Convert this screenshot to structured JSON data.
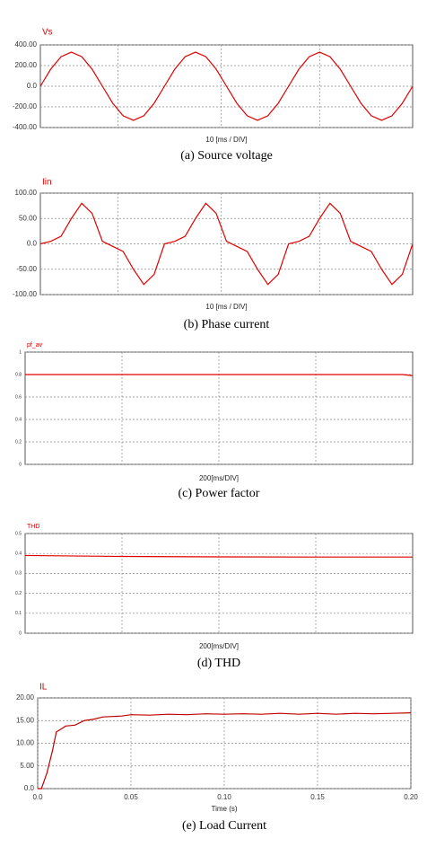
{
  "chart_data": [
    {
      "type": "line",
      "caption": "(a)  Source voltage",
      "xlabel": "10 [ms / DIV]",
      "x": [
        0,
        1,
        2,
        3,
        4,
        5,
        6,
        7,
        8,
        9,
        10,
        11,
        12,
        13,
        14,
        15,
        16,
        17,
        18,
        19,
        20,
        21,
        22,
        23,
        24,
        25,
        26,
        27,
        28,
        29,
        30,
        31,
        32,
        33,
        34,
        35,
        36
      ],
      "series": [
        {
          "name": "Vs",
          "color": "#e00000",
          "values": [
            0,
            165,
            286,
            330,
            286,
            165,
            0,
            -165,
            -286,
            -330,
            -286,
            -165,
            0,
            165,
            286,
            330,
            286,
            165,
            0,
            -165,
            -286,
            -330,
            -286,
            -165,
            0,
            165,
            286,
            330,
            286,
            165,
            0,
            -165,
            -286,
            -330,
            -286,
            -165,
            0
          ]
        }
      ],
      "xlim": [
        0,
        36
      ],
      "xgrid": [
        7.5,
        17.5,
        27
      ],
      "ylim": [
        -400,
        400
      ],
      "yticks": [
        {
          "value": -400,
          "label": "-400.00"
        },
        {
          "value": -200,
          "label": "-200.00"
        },
        {
          "value": 0,
          "label": "0.0"
        },
        {
          "value": 200,
          "label": "200.00"
        },
        {
          "value": 400,
          "label": "400.00"
        }
      ]
    },
    {
      "type": "line",
      "caption": "(b)  Phase  current",
      "xlabel": "10 [ms / DIV]",
      "x": [
        0,
        1,
        2,
        3,
        4,
        5,
        6,
        7,
        8,
        9,
        10,
        11,
        12,
        13,
        14,
        15,
        16,
        17,
        18,
        19,
        20,
        21,
        22,
        23,
        24,
        25,
        26,
        27,
        28,
        29,
        30,
        31,
        32,
        33,
        34,
        35,
        36
      ],
      "series": [
        {
          "name": "Iin",
          "color": "#e00000",
          "values": [
            0,
            5,
            15,
            50,
            80,
            60,
            5,
            -5,
            -15,
            -50,
            -80,
            -60,
            0,
            5,
            15,
            50,
            80,
            60,
            5,
            -5,
            -15,
            -50,
            -80,
            -60,
            0,
            5,
            15,
            50,
            80,
            60,
            5,
            -5,
            -15,
            -50,
            -80,
            -60,
            0
          ]
        }
      ],
      "xlim": [
        0,
        36
      ],
      "xgrid": [
        7.5,
        17.5,
        27
      ],
      "ylim": [
        -100,
        100
      ],
      "yticks": [
        {
          "value": -100,
          "label": "-100.00"
        },
        {
          "value": -50,
          "label": "-50.00"
        },
        {
          "value": 0,
          "label": "0.0"
        },
        {
          "value": 50,
          "label": "50.00"
        },
        {
          "value": 100,
          "label": "100.00"
        }
      ]
    },
    {
      "type": "line",
      "caption": "(c)  Power  factor",
      "xlabel": "200[ms/DIV]",
      "x": [
        0,
        200,
        400,
        600,
        780,
        800
      ],
      "series": [
        {
          "name": "pf_av",
          "color": "#e00000",
          "values": [
            0.8,
            0.8,
            0.8,
            0.8,
            0.8,
            0.79
          ]
        }
      ],
      "xlim": [
        0,
        800
      ],
      "xgrid": [
        200,
        400,
        600
      ],
      "ylim": [
        0,
        1
      ],
      "yticks": [
        0,
        0.2,
        0.4,
        0.6,
        0.8,
        1
      ]
    },
    {
      "type": "line",
      "caption": "(d)  THD",
      "xlabel": "200[ms/DIV]",
      "x": [
        0,
        200,
        400,
        600,
        800
      ],
      "series": [
        {
          "name": "THD",
          "color": "#e00000",
          "values": [
            0.39,
            0.385,
            0.383,
            0.382,
            0.382
          ]
        }
      ],
      "xlim": [
        0,
        800
      ],
      "xgrid": [
        200,
        400,
        600
      ],
      "ylim": [
        0,
        0.5
      ],
      "yticks": [
        0,
        0.1,
        0.2,
        0.3,
        0.4,
        0.5
      ]
    },
    {
      "type": "line",
      "caption": "(e)  Load  Current",
      "xlabel": "Time (s)",
      "x": [
        0,
        0.002,
        0.005,
        0.008,
        0.01,
        0.012,
        0.015,
        0.02,
        0.025,
        0.03,
        0.035,
        0.04,
        0.045,
        0.05,
        0.06,
        0.07,
        0.08,
        0.09,
        0.1,
        0.11,
        0.12,
        0.13,
        0.14,
        0.15,
        0.16,
        0.17,
        0.18,
        0.19,
        0.2
      ],
      "series": [
        {
          "name": "IL",
          "color": "#c00000",
          "values": [
            0,
            0,
            3.5,
            8.5,
            12.5,
            13,
            13.8,
            14,
            15,
            15.3,
            15.8,
            15.9,
            16,
            16.3,
            16.2,
            16.4,
            16.3,
            16.5,
            16.4,
            16.5,
            16.4,
            16.6,
            16.4,
            16.6,
            16.4,
            16.6,
            16.5,
            16.6,
            16.7
          ]
        }
      ],
      "xlim": [
        0,
        0.2
      ],
      "xticks": [
        {
          "value": 0,
          "label": "0.0"
        },
        0.05,
        {
          "value": 0.1,
          "label": "0.10"
        },
        0.15,
        {
          "value": 0.2,
          "label": "0.20"
        }
      ],
      "ylim": [
        0,
        20
      ],
      "yticks": [
        {
          "value": 0,
          "label": "0.0"
        },
        {
          "value": 5,
          "label": "5.00"
        },
        {
          "value": 10,
          "label": "10.00"
        },
        {
          "value": 15,
          "label": "15.00"
        },
        {
          "value": 20,
          "label": "20.00"
        }
      ]
    }
  ]
}
